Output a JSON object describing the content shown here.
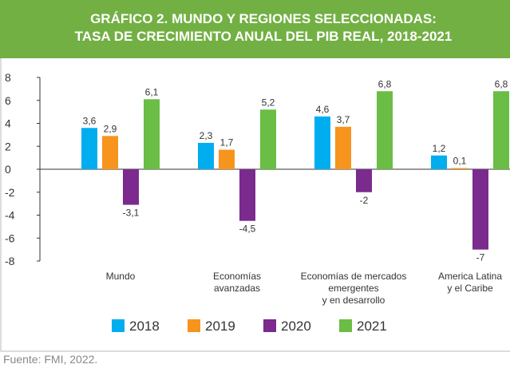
{
  "chart_data": {
    "type": "bar",
    "title": "GRÁFICO 2. MUNDO Y REGIONES SELECCIONADAS:\nTASA DE CRECIMIENTO ANUAL DEL PIB REAL, 2018-2021",
    "categories": [
      "Mundo",
      "Economías\navanzadas",
      "Economías de mercados\nemergentes\ny en desarrollo",
      "America Latina\ny el Caribe"
    ],
    "series": [
      {
        "name": "2018",
        "color": "#00aeef",
        "values": [
          3.6,
          2.3,
          4.6,
          1.2
        ],
        "value_labels": [
          "3,6",
          "2,3",
          "4,6",
          "1,2"
        ]
      },
      {
        "name": "2019",
        "color": "#f7941d",
        "values": [
          2.9,
          1.7,
          3.7,
          0.1
        ],
        "value_labels": [
          "2,9",
          "1,7",
          "3,7",
          "0,1"
        ]
      },
      {
        "name": "2020",
        "color": "#7b2a8e",
        "values": [
          -3.1,
          -4.5,
          -2,
          -7
        ],
        "value_labels": [
          "-3,1",
          "-4,5",
          "-2",
          "-7"
        ]
      },
      {
        "name": "2021",
        "color": "#6abd45",
        "values": [
          6.1,
          5.2,
          6.8,
          6.8
        ],
        "value_labels": [
          "6,1",
          "5,2",
          "6,8",
          "6,8"
        ]
      }
    ],
    "ylim": [
      -8,
      8
    ],
    "yticks": [
      -8,
      -6,
      -4,
      -2,
      0,
      2,
      4,
      6,
      8
    ],
    "legend": "bottom",
    "source": "Fuente: FMI, 2022."
  }
}
